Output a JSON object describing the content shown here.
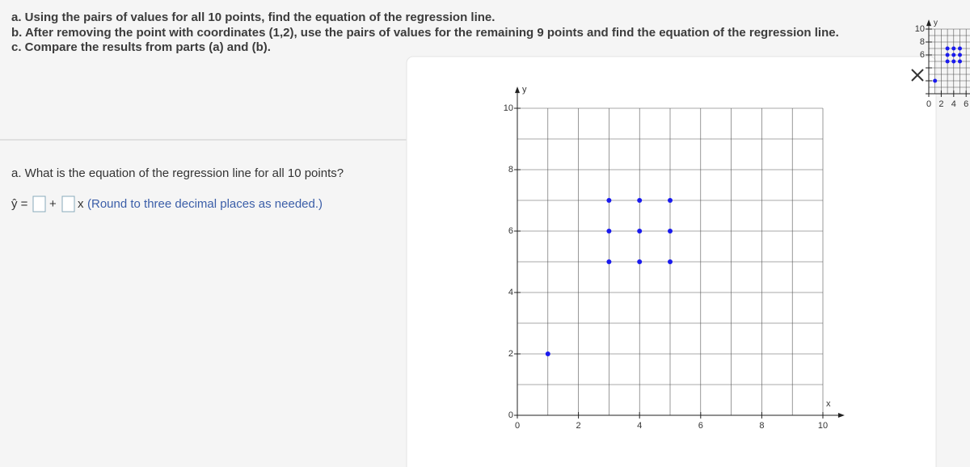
{
  "question": {
    "lines": [
      "a. Using the pairs of values for all 10 points, find the equation of the regression line.",
      "b. After removing the point with coordinates (1,2), use the pairs of values for the remaining 9 points and find the equation of the regression line.",
      "c. Compare the results from parts (a) and (b)."
    ]
  },
  "part_a": {
    "prompt": "a. What is the equation of the regression line for all 10 points?",
    "lhs": "ŷ =",
    "plus": "+",
    "x": "x",
    "note": "(Round to three decimal places as needed.)"
  },
  "chart_data": {
    "type": "scatter",
    "x_label": "x",
    "y_label": "y",
    "color": "#1a1aee",
    "x": [
      1,
      3,
      4,
      5,
      3,
      4,
      5,
      3,
      4,
      5
    ],
    "y": [
      2,
      7,
      7,
      7,
      6,
      6,
      6,
      5,
      5,
      5
    ],
    "xlim": [
      0,
      10
    ],
    "ylim": [
      0,
      10
    ],
    "xticks": [
      0,
      2,
      4,
      6,
      8,
      10
    ],
    "yticks": [
      0,
      2,
      4,
      6,
      8,
      10
    ],
    "grid": true
  }
}
